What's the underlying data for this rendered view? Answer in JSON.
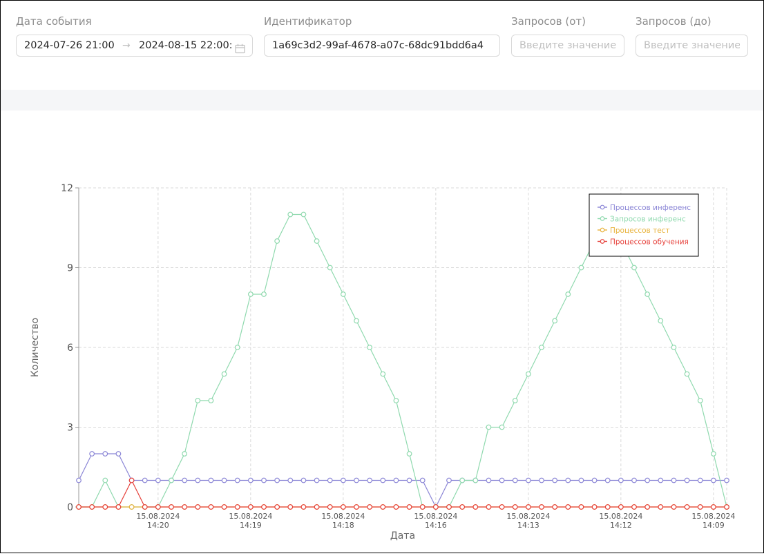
{
  "filters": {
    "event_date": {
      "label": "Дата события",
      "start": "2024-07-26 21:00:00",
      "end": "2024-08-15 22:00:00"
    },
    "identifier": {
      "label": "Идентификатор",
      "value": "1a69c3d2-99af-4678-a07c-68dc91bdd6a4"
    },
    "requests_from": {
      "label": "Запросов (от)",
      "placeholder": "Введите значение"
    },
    "requests_to": {
      "label": "Запросов (до)",
      "placeholder": "Введите значение"
    }
  },
  "colors": {
    "inference_processes": "#8b86d6",
    "inference_requests": "#8fd9ae",
    "test_processes": "#e8b23a",
    "training_processes": "#e6403a"
  },
  "icons": {
    "date_range": "calendar-icon",
    "range_separator": "arrow-right-icon"
  },
  "chart_data": {
    "type": "line",
    "xlabel": "Дата",
    "ylabel": "Количество",
    "ylim": [
      0,
      12
    ],
    "yticks": [
      0,
      3,
      6,
      9,
      12
    ],
    "grid": true,
    "legend_position": "top-right",
    "x_tick_labels": [
      {
        "index": 6,
        "date": "15.08.2024",
        "time": "14:20"
      },
      {
        "index": 13,
        "date": "15.08.2024",
        "time": "14:19"
      },
      {
        "index": 20,
        "date": "15.08.2024",
        "time": "14:18"
      },
      {
        "index": 27,
        "date": "15.08.2024",
        "time": "14:16"
      },
      {
        "index": 34,
        "date": "15.08.2024",
        "time": "14:13"
      },
      {
        "index": 41,
        "date": "15.08.2024",
        "time": "14:12"
      },
      {
        "index": 48,
        "date": "15.08.2024",
        "time": "14:09"
      }
    ],
    "series": [
      {
        "name": "Процессов инференс",
        "color_key": "inference_processes",
        "values": [
          1,
          2,
          2,
          2,
          1,
          1,
          1,
          1,
          1,
          1,
          1,
          1,
          1,
          1,
          1,
          1,
          1,
          1,
          1,
          1,
          1,
          1,
          1,
          1,
          1,
          1,
          1,
          0,
          1,
          1,
          1,
          1,
          1,
          1,
          1,
          1,
          1,
          1,
          1,
          1,
          1,
          1,
          1,
          1,
          1,
          1,
          1,
          1,
          1,
          1
        ]
      },
      {
        "name": "Запросов инференс",
        "color_key": "inference_requests",
        "values": [
          0,
          0,
          1,
          0,
          0,
          0,
          0,
          1,
          2,
          4,
          4,
          5,
          6,
          8,
          8,
          10,
          11,
          11,
          10,
          9,
          8,
          7,
          6,
          5,
          4,
          2,
          0,
          0,
          0,
          1,
          1,
          3,
          3,
          4,
          5,
          6,
          7,
          8,
          9,
          10,
          11,
          10,
          9,
          8,
          7,
          6,
          5,
          4,
          2,
          0
        ]
      },
      {
        "name": "Процессов тест",
        "color_key": "test_processes",
        "values": [
          0,
          0,
          0,
          0,
          0,
          0,
          0,
          0,
          0,
          0,
          0,
          0,
          0,
          0,
          0,
          0,
          0,
          0,
          0,
          0,
          0,
          0,
          0,
          0,
          0,
          0,
          0,
          0,
          0,
          0,
          0,
          0,
          0,
          0,
          0,
          0,
          0,
          0,
          0,
          0,
          0,
          0,
          0,
          0,
          0,
          0,
          0,
          0,
          0,
          0
        ]
      },
      {
        "name": "Процессов обучения",
        "color_key": "training_processes",
        "values": [
          0,
          0,
          0,
          0,
          1,
          0,
          0,
          0,
          0,
          0,
          0,
          0,
          0,
          0,
          0,
          0,
          0,
          0,
          0,
          0,
          0,
          0,
          0,
          0,
          0,
          0,
          0,
          0,
          0,
          0,
          0,
          0,
          0,
          0,
          0,
          0,
          0,
          0,
          0,
          0,
          0,
          0,
          0,
          0,
          0,
          0,
          0,
          0,
          0,
          0
        ]
      }
    ]
  }
}
